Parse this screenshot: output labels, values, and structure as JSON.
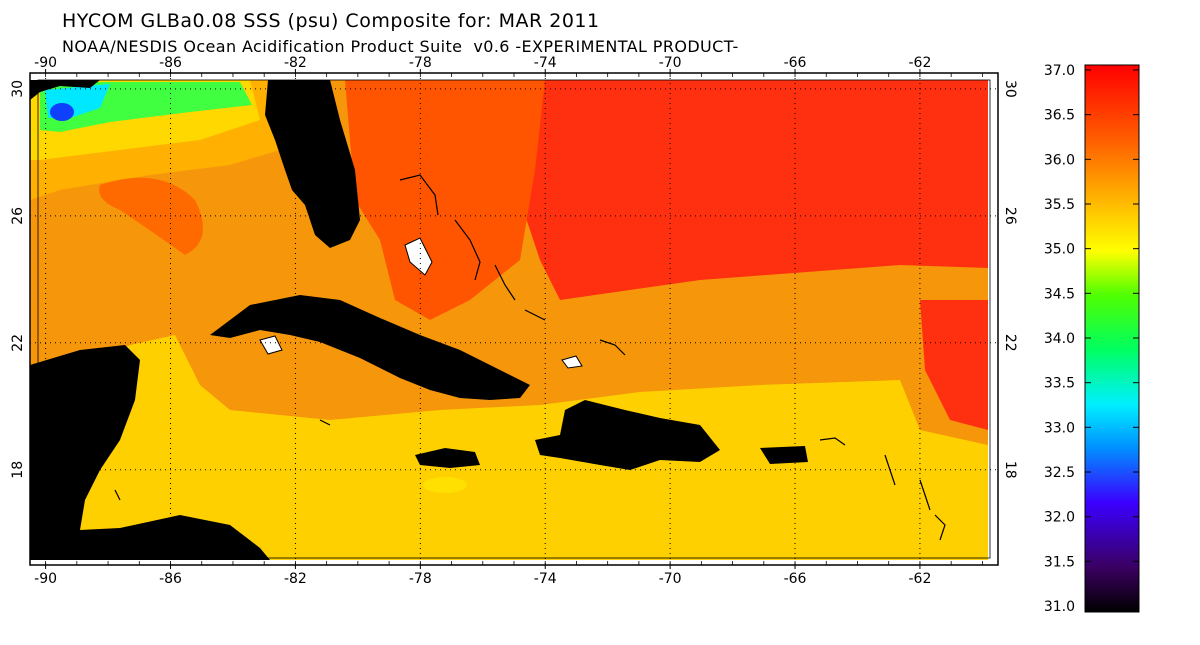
{
  "header": {
    "title": "HYCOM GLBa0.08 SSS (psu) Composite for: MAR 2011",
    "subtitle": "NOAA/NESDIS Ocean Acidification Product Suite  v0.6 -EXPERIMENTAL PRODUCT-"
  },
  "map": {
    "variable": "Sea Surface Salinity",
    "units": "psu",
    "extent": {
      "lon": [
        -90.5,
        -59.5
      ],
      "lat": [
        15,
        30.5
      ]
    },
    "lon_ticks": [
      "-90",
      "-86",
      "-82",
      "-78",
      "-74",
      "-70",
      "-66",
      "-62"
    ],
    "lat_ticks": [
      "30",
      "26",
      "22",
      "18"
    ],
    "land_color": "#000000",
    "grid": true
  },
  "colorbar": {
    "min": 31.0,
    "max": 37.0,
    "labels": [
      "37.0",
      "36.5",
      "36.0",
      "35.5",
      "35.0",
      "34.5",
      "34.0",
      "33.5",
      "33.0",
      "32.5",
      "32.0",
      "31.5",
      "31.0"
    ],
    "stops": [
      "#000000",
      "#3a0060",
      "#4b00ff",
      "#0090ff",
      "#00e8ff",
      "#00ff60",
      "#40ff00",
      "#ffff00",
      "#ffb000",
      "#ff6000",
      "#ff0000"
    ]
  }
}
